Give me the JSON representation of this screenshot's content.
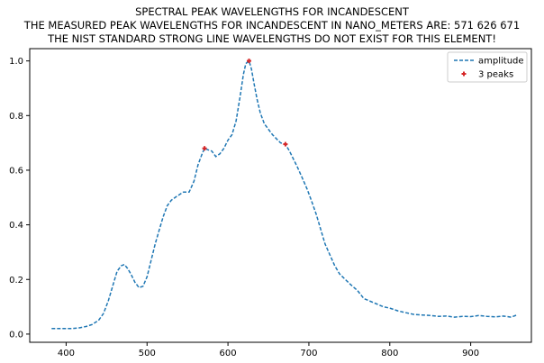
{
  "chart_data": {
    "type": "line",
    "title": [
      "SPECTRAL PEAK WAVELENGTHS FOR INCANDESCENT",
      "THE MEASURED PEAK WAVELENGTHS FOR INCANDESCENT IN NANO_METERS ARE: 571 626 671",
      "THE NIST STANDARD STRONG LINE WAVELENGTHS DO NOT EXIST FOR THIS ELEMENT!"
    ],
    "xlabel": "",
    "ylabel": "",
    "xlim": [
      355,
      975
    ],
    "ylim": [
      -0.03,
      1.045
    ],
    "xticks": [
      400,
      500,
      600,
      700,
      800,
      900
    ],
    "yticks": [
      0.0,
      0.2,
      0.4,
      0.6,
      0.8,
      1.0
    ],
    "xtick_labels": [
      "400",
      "500",
      "600",
      "700",
      "800",
      "900"
    ],
    "ytick_labels": [
      "0.0",
      "0.2",
      "0.4",
      "0.6",
      "0.8",
      "1.0"
    ],
    "grid": false,
    "legend_position": "top-right",
    "series": [
      {
        "name": "amplitude",
        "style": "dashed",
        "color": "#1f77b4",
        "x": [
          382,
          395,
          405,
          415,
          425,
          432,
          440,
          446,
          452,
          458,
          463,
          468,
          472,
          476,
          480,
          485,
          490,
          495,
          500,
          505,
          510,
          515,
          520,
          525,
          530,
          537,
          545,
          552,
          558,
          563,
          568,
          571,
          575,
          580,
          585,
          590,
          595,
          600,
          605,
          610,
          615,
          619,
          622,
          626,
          629,
          632,
          636,
          640,
          645,
          650,
          655,
          660,
          665,
          671,
          676,
          681,
          686,
          692,
          698,
          703,
          709,
          715,
          720,
          726,
          732,
          738,
          745,
          752,
          760,
          768,
          776,
          784,
          792,
          800,
          810,
          820,
          830,
          840,
          850,
          860,
          870,
          880,
          890,
          900,
          910,
          920,
          930,
          940,
          950,
          957
        ],
        "y": [
          0.02,
          0.02,
          0.02,
          0.022,
          0.028,
          0.035,
          0.05,
          0.075,
          0.12,
          0.18,
          0.23,
          0.25,
          0.255,
          0.24,
          0.22,
          0.19,
          0.17,
          0.175,
          0.21,
          0.27,
          0.33,
          0.38,
          0.43,
          0.47,
          0.49,
          0.505,
          0.52,
          0.52,
          0.56,
          0.62,
          0.66,
          0.68,
          0.675,
          0.67,
          0.65,
          0.66,
          0.68,
          0.71,
          0.73,
          0.78,
          0.87,
          0.95,
          0.99,
          1.0,
          0.97,
          0.92,
          0.86,
          0.81,
          0.77,
          0.75,
          0.73,
          0.715,
          0.7,
          0.695,
          0.67,
          0.64,
          0.61,
          0.57,
          0.53,
          0.49,
          0.44,
          0.38,
          0.33,
          0.29,
          0.25,
          0.22,
          0.2,
          0.18,
          0.16,
          0.13,
          0.12,
          0.11,
          0.1,
          0.095,
          0.085,
          0.078,
          0.072,
          0.07,
          0.068,
          0.065,
          0.066,
          0.062,
          0.065,
          0.064,
          0.068,
          0.065,
          0.063,
          0.066,
          0.062,
          0.07
        ]
      },
      {
        "name": "3 peaks",
        "style": "markers",
        "color": "#d62728",
        "x": [
          571,
          626,
          671
        ],
        "y": [
          0.68,
          1.0,
          0.695
        ]
      }
    ]
  }
}
